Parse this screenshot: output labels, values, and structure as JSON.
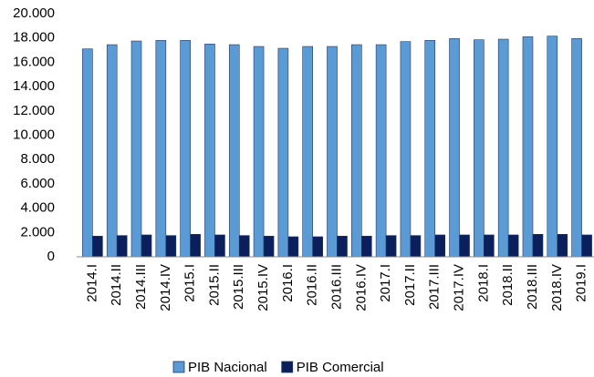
{
  "chart_data": {
    "type": "bar",
    "categories": [
      "2014.I",
      "2014.II",
      "2014.III",
      "2014.IV",
      "2015.I",
      "2015.II",
      "2015.III",
      "2015.IV",
      "2016.I",
      "2016.II",
      "2016.III",
      "2016.IV",
      "2017.I",
      "2017.II",
      "2017.III",
      "2017.IV",
      "2018.I",
      "2018.II",
      "2018.III",
      "2018.IV",
      "2019.I"
    ],
    "series": [
      {
        "name": "PIB Nacional",
        "color": "#5b9bd5",
        "values": [
          17100,
          17450,
          17750,
          17800,
          17800,
          17500,
          17450,
          17300,
          17150,
          17300,
          17300,
          17450,
          17450,
          17700,
          17800,
          17950,
          17850,
          17900,
          18100,
          18150,
          17950
        ]
      },
      {
        "name": "PIB Comercial",
        "color": "#0b1f5c",
        "values": [
          1700,
          1750,
          1800,
          1750,
          1850,
          1800,
          1750,
          1700,
          1650,
          1650,
          1700,
          1700,
          1750,
          1750,
          1800,
          1800,
          1800,
          1800,
          1850,
          1850,
          1800
        ]
      }
    ],
    "ylim": [
      0,
      20000
    ],
    "yticks": [
      0,
      {
        "value": 2000,
        "label": "2.000"
      },
      {
        "value": 4000,
        "label": "4.000"
      },
      {
        "value": 6000,
        "label": "6.000"
      },
      {
        "value": 8000,
        "label": "8.000"
      },
      {
        "value": 10000,
        "label": "10.000"
      },
      {
        "value": 12000,
        "label": "12.000"
      },
      {
        "value": 14000,
        "label": "14.000"
      },
      {
        "value": 16000,
        "label": "16.000"
      },
      {
        "value": 18000,
        "label": "18.000"
      },
      {
        "value": 20000,
        "label": "20.000"
      }
    ],
    "grid": false,
    "legend": "bottom"
  }
}
